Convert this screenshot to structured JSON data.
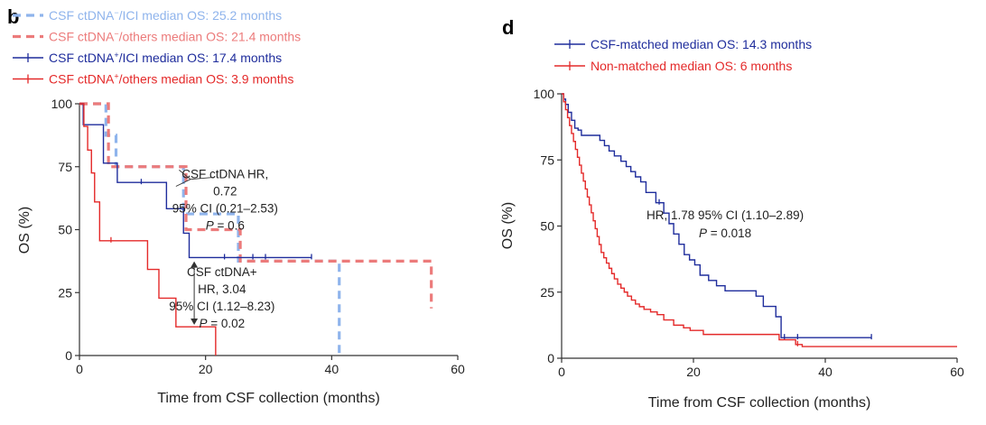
{
  "chart_data": [
    {
      "type": "line",
      "subtype": "kaplan-meier",
      "panel_label": "b",
      "xlabel": "Time from CSF collection (months)",
      "ylabel": "OS (%)",
      "xlim": [
        0,
        60
      ],
      "ylim": [
        0,
        100
      ],
      "xticks": [
        0,
        20,
        40,
        60
      ],
      "yticks": [
        0,
        25,
        50,
        75,
        100
      ],
      "grid": false,
      "legend_position": "top-left",
      "series": [
        {
          "name": "CSF ctDNA⁻/ICI median OS: 25.2 months",
          "name_parts": [
            "CSF ctDNA",
            "−",
            "/ICI median OS: 25.2 months"
          ],
          "color": "#8fb4ec",
          "dashed": true,
          "x": [
            0,
            4.2,
            5.8,
            16.5,
            25.2,
            41.2
          ],
          "y": [
            100,
            87.5,
            75,
            56.25,
            37.5,
            0
          ],
          "censor_x": [],
          "censor_y": []
        },
        {
          "name": "CSF ctDNA⁻/others median OS: 21.4 months",
          "name_parts": [
            "CSF ctDNA",
            "−",
            "/others median OS: 21.4 months"
          ],
          "color": "#ec7b7b",
          "dashed": true,
          "x": [
            0,
            4.6,
            16.9,
            25.5,
            55.8
          ],
          "y": [
            100,
            75,
            50,
            37.5,
            18.75
          ],
          "censor_x": [],
          "censor_y": []
        },
        {
          "name": "CSF ctDNA⁺/ICI median OS: 17.4 months",
          "name_parts": [
            "CSF ctDNA",
            "+",
            "/ICI median OS: 17.4 months"
          ],
          "color": "#1f2d9c",
          "dashed": false,
          "x": [
            0,
            0.6,
            3.8,
            6,
            13.8,
            16.5,
            17.4,
            18.8
          ],
          "y": [
            100,
            91.7,
            76.4,
            68.75,
            58.3,
            48.6,
            38.9,
            38.9
          ],
          "end_x": 36.8,
          "censor_x": [
            9.8,
            23,
            27.5,
            29.5,
            36.8
          ],
          "censor_y": [
            68.75,
            38.9,
            38.9,
            38.9,
            38.9
          ]
        },
        {
          "name": "CSF ctDNA⁺/others median OS: 3.9 months",
          "name_parts": [
            "CSF ctDNA",
            "+",
            "/others median OS: 3.9 months"
          ],
          "color": "#e42a2a",
          "dashed": false,
          "x": [
            0,
            0.7,
            1.3,
            1.9,
            2.4,
            3.2,
            10.8,
            12.6,
            15.3,
            21.6
          ],
          "y": [
            100,
            91,
            81.6,
            72.5,
            61,
            45.6,
            34.2,
            22.8,
            11.4,
            0
          ],
          "censor_x": [
            5
          ],
          "censor_y": [
            45.6
          ]
        }
      ],
      "annotations": {
        "hr_minus": [
          "CSF ctDNA HR,",
          "0.72",
          "95% CI (0.21–2.53)",
          "P = 0.6"
        ],
        "hr_plus": [
          "CSF ctDNA+",
          "HR, 3.04",
          "95% CI (1.12–8.23)",
          "P = 0.02"
        ]
      }
    },
    {
      "type": "line",
      "subtype": "kaplan-meier",
      "panel_label": "d",
      "xlabel": "Time from CSF collection (months)",
      "ylabel": "OS (%)",
      "xlim": [
        0,
        60
      ],
      "ylim": [
        0,
        100
      ],
      "xticks": [
        0,
        20,
        40,
        60
      ],
      "yticks": [
        0,
        25,
        50,
        75,
        100
      ],
      "grid": false,
      "legend_position": "top-left",
      "series": [
        {
          "name": "CSF-matched median OS: 14.3 months",
          "color": "#1f2d9c",
          "dashed": false,
          "x": [
            0,
            0.3,
            0.6,
            1,
            1.5,
            2,
            2.5,
            3,
            4,
            5.8,
            6.5,
            7.2,
            8,
            9,
            9.8,
            10.5,
            11.2,
            12,
            12.8,
            14.3,
            15.5,
            16.3,
            17,
            17.8,
            18.6,
            19.4,
            20.2,
            21,
            22.3,
            23.5,
            24.8,
            26,
            28.8,
            29.5,
            30.6,
            32.5,
            33.3
          ],
          "y": [
            100,
            98,
            96,
            93,
            90,
            87,
            86.3,
            84.3,
            84.3,
            82.4,
            80.4,
            78.4,
            76.5,
            74.5,
            72.5,
            70.6,
            68.6,
            66.7,
            62.7,
            58.8,
            54.9,
            50.9,
            47,
            43.1,
            39.2,
            37.2,
            35.3,
            31.4,
            29.4,
            27.4,
            25.5,
            25.5,
            25.5,
            23.5,
            19.6,
            15.7,
            7.8
          ],
          "end_x": 47,
          "censor_x": [
            14.8,
            33.8,
            35.8,
            47
          ],
          "censor_y": [
            58.8,
            7.8,
            7.8,
            7.8
          ]
        },
        {
          "name": "Non-matched median OS: 6 months",
          "color": "#e42a2a",
          "dashed": false,
          "x": [
            0,
            0.3,
            0.6,
            0.9,
            1.2,
            1.5,
            1.8,
            2.1,
            2.4,
            2.7,
            3,
            3.3,
            3.6,
            3.9,
            4.2,
            4.5,
            4.8,
            5.1,
            5.4,
            5.7,
            6,
            6.4,
            6.8,
            7.2,
            7.6,
            8,
            8.5,
            9,
            9.5,
            10,
            10.6,
            11.2,
            11.8,
            12.5,
            13.5,
            14.5,
            15.5,
            17,
            18.5,
            19.5,
            21.5,
            33,
            35.5,
            36.5
          ],
          "y": [
            100,
            97,
            94,
            91,
            88,
            85,
            82,
            79,
            76,
            73,
            70,
            67,
            64,
            61,
            58,
            55,
            52,
            49,
            46,
            43,
            40,
            38,
            36,
            34,
            32,
            30,
            28,
            26.5,
            25,
            23.5,
            22,
            20.5,
            19.5,
            18.5,
            17.5,
            16.5,
            14.5,
            12.5,
            11.5,
            10.5,
            9,
            7,
            5.2,
            4.4
          ],
          "end_x": 60,
          "censor_x": [
            35.8
          ],
          "censor_y": [
            5.2
          ]
        }
      ],
      "annotations": {
        "hr": [
          "HR, 1.78 95% CI (1.10–2.89)",
          "P = 0.018"
        ]
      }
    }
  ]
}
